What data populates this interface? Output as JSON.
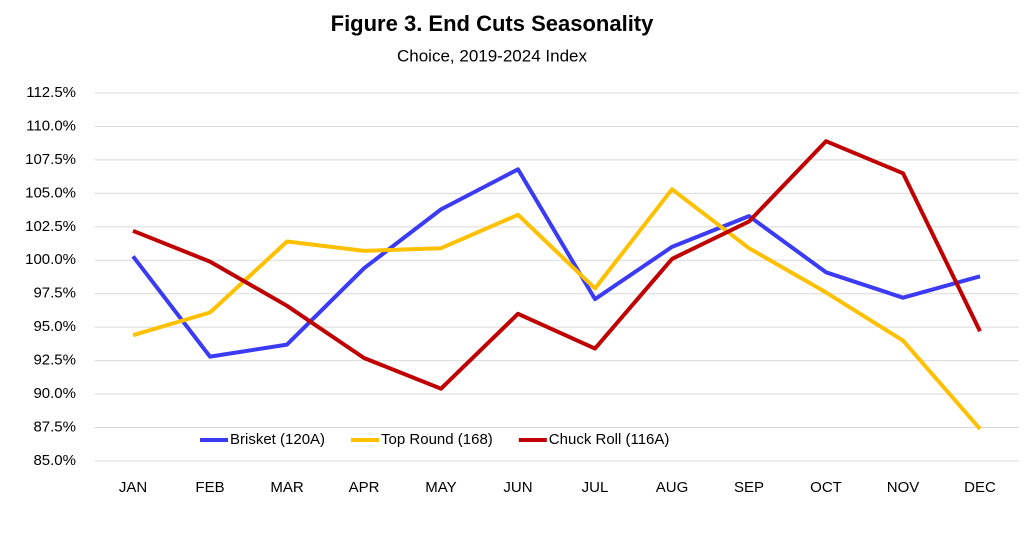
{
  "chart_data": {
    "type": "line",
    "title": "Figure 3. End Cuts Seasonality",
    "subtitle": "Choice, 2019-2024 Index",
    "categories": [
      "JAN",
      "FEB",
      "MAR",
      "APR",
      "MAY",
      "JUN",
      "JUL",
      "AUG",
      "SEP",
      "OCT",
      "NOV",
      "DEC"
    ],
    "series": [
      {
        "name": "Brisket (120A)",
        "color": "#3b3bf5",
        "values": [
          100.3,
          92.8,
          93.7,
          99.4,
          103.8,
          106.8,
          97.1,
          101.0,
          103.3,
          99.1,
          97.2,
          98.8
        ]
      },
      {
        "name": "Top Round (168)",
        "color": "#ffc000",
        "values": [
          94.4,
          96.1,
          101.4,
          100.7,
          100.9,
          103.4,
          97.9,
          105.3,
          100.9,
          97.6,
          94.0,
          87.4
        ]
      },
      {
        "name": "Chuck Roll (116A)",
        "color": "#c00000",
        "values": [
          102.2,
          99.9,
          96.6,
          92.7,
          90.4,
          96.0,
          93.4,
          100.1,
          102.9,
          108.9,
          106.5,
          94.7
        ]
      }
    ],
    "ylim": [
      85,
      112.5
    ],
    "yticks": [
      {
        "value": 85,
        "label": "85.0%"
      },
      {
        "value": 87.5,
        "label": "87.5%"
      },
      {
        "value": 90,
        "label": "90.0%"
      },
      {
        "value": 92.5,
        "label": "92.5%"
      },
      {
        "value": 95,
        "label": "95.0%"
      },
      {
        "value": 97.5,
        "label": "97.5%"
      },
      {
        "value": 100,
        "label": "100.0%"
      },
      {
        "value": 102.5,
        "label": "102.5%"
      },
      {
        "value": 105,
        "label": "105.0%"
      },
      {
        "value": 107.5,
        "label": "107.5%"
      },
      {
        "value": 110,
        "label": "110.0%"
      },
      {
        "value": 112.5,
        "label": "112.5%"
      }
    ],
    "grid": true,
    "legend": "lower left"
  }
}
